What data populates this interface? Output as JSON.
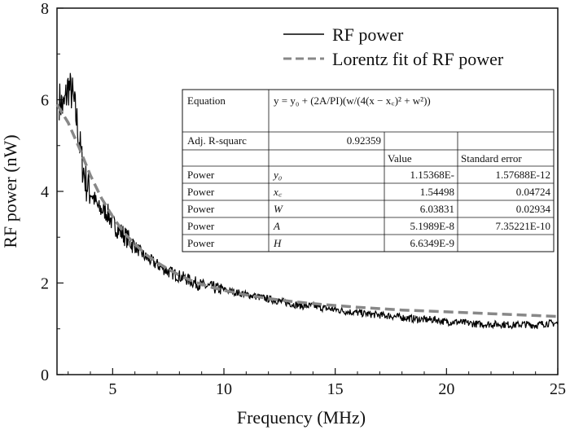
{
  "chart_data": {
    "type": "line",
    "xlabel": "Frequency (MHz)",
    "ylabel": "RF power (nW)",
    "xlim": [
      2.5,
      25
    ],
    "ylim": [
      0,
      8
    ],
    "x_ticks": [
      5,
      10,
      15,
      20,
      25
    ],
    "y_ticks": [
      0,
      2,
      4,
      6,
      8
    ],
    "legend_position": "top-right",
    "series": [
      {
        "name": "RF power",
        "style": "solid",
        "color": "#000000",
        "x": [
          2.6,
          2.8,
          3.0,
          3.2,
          3.4,
          3.6,
          3.8,
          4.0,
          4.2,
          4.4,
          4.6,
          4.8,
          5.0,
          5.3,
          5.6,
          6.0,
          6.5,
          7.0,
          7.5,
          8.0,
          8.5,
          9.0,
          9.5,
          10.0,
          10.5,
          11.0,
          11.5,
          12.0,
          12.5,
          13.0,
          13.5,
          14.0,
          14.5,
          15.0,
          15.5,
          16.0,
          16.5,
          17.0,
          17.5,
          18.0,
          18.5,
          19.0,
          19.5,
          20.0,
          20.5,
          21.0,
          21.5,
          22.0,
          22.5,
          23.0,
          23.5,
          24.0,
          24.5,
          25.0
        ],
        "y": [
          6.0,
          5.8,
          6.3,
          6.1,
          5.5,
          4.7,
          4.2,
          4.0,
          3.8,
          3.6,
          3.6,
          3.5,
          3.3,
          3.15,
          3.0,
          2.8,
          2.55,
          2.4,
          2.25,
          2.15,
          2.05,
          1.95,
          1.9,
          1.85,
          1.8,
          1.75,
          1.7,
          1.65,
          1.6,
          1.55,
          1.5,
          1.5,
          1.45,
          1.42,
          1.38,
          1.35,
          1.32,
          1.3,
          1.28,
          1.25,
          1.22,
          1.2,
          1.2,
          1.15,
          1.15,
          1.12,
          1.1,
          1.1,
          1.1,
          1.08,
          1.1,
          1.08,
          1.12,
          1.12
        ]
      },
      {
        "name": "Lorentz fit of RF power",
        "style": "dashed",
        "color": "#888888",
        "x": [
          2.5,
          3.0,
          3.5,
          4.0,
          4.5,
          5.0,
          5.5,
          6.0,
          6.5,
          7.0,
          7.5,
          8.0,
          8.5,
          9.0,
          9.5,
          10.0,
          11.0,
          12.0,
          13.0,
          14.0,
          15.0,
          16.0,
          17.0,
          18.0,
          19.0,
          20.0,
          21.0,
          22.0,
          23.0,
          24.0,
          25.0
        ],
        "y": [
          5.9,
          5.5,
          4.95,
          4.35,
          3.85,
          3.45,
          3.1,
          2.85,
          2.62,
          2.45,
          2.3,
          2.17,
          2.06,
          1.97,
          1.9,
          1.84,
          1.74,
          1.66,
          1.6,
          1.55,
          1.51,
          1.47,
          1.44,
          1.41,
          1.39,
          1.37,
          1.35,
          1.33,
          1.31,
          1.29,
          1.27
        ]
      }
    ]
  },
  "fit_table": {
    "rows": [
      [
        "Equation",
        "y = y₀ + (2A/PI)(w/(4(x − x꜀)² + w²))",
        "",
        ""
      ],
      [
        "Adj. R-squarc",
        "0.92359",
        "",
        ""
      ],
      [
        "",
        "",
        "Value",
        "Standard error"
      ],
      [
        "Power",
        "y₀",
        "1.15368E-",
        "1.57688E-12"
      ],
      [
        "Power",
        "x꜀",
        "1.54498",
        "0.04724"
      ],
      [
        "Power",
        "W",
        "6.03831",
        "0.02934"
      ],
      [
        "Power",
        "A",
        "5.1989E-8",
        "7.35221E-10"
      ],
      [
        "Power",
        "H",
        "6.6349E-9",
        ""
      ]
    ]
  }
}
